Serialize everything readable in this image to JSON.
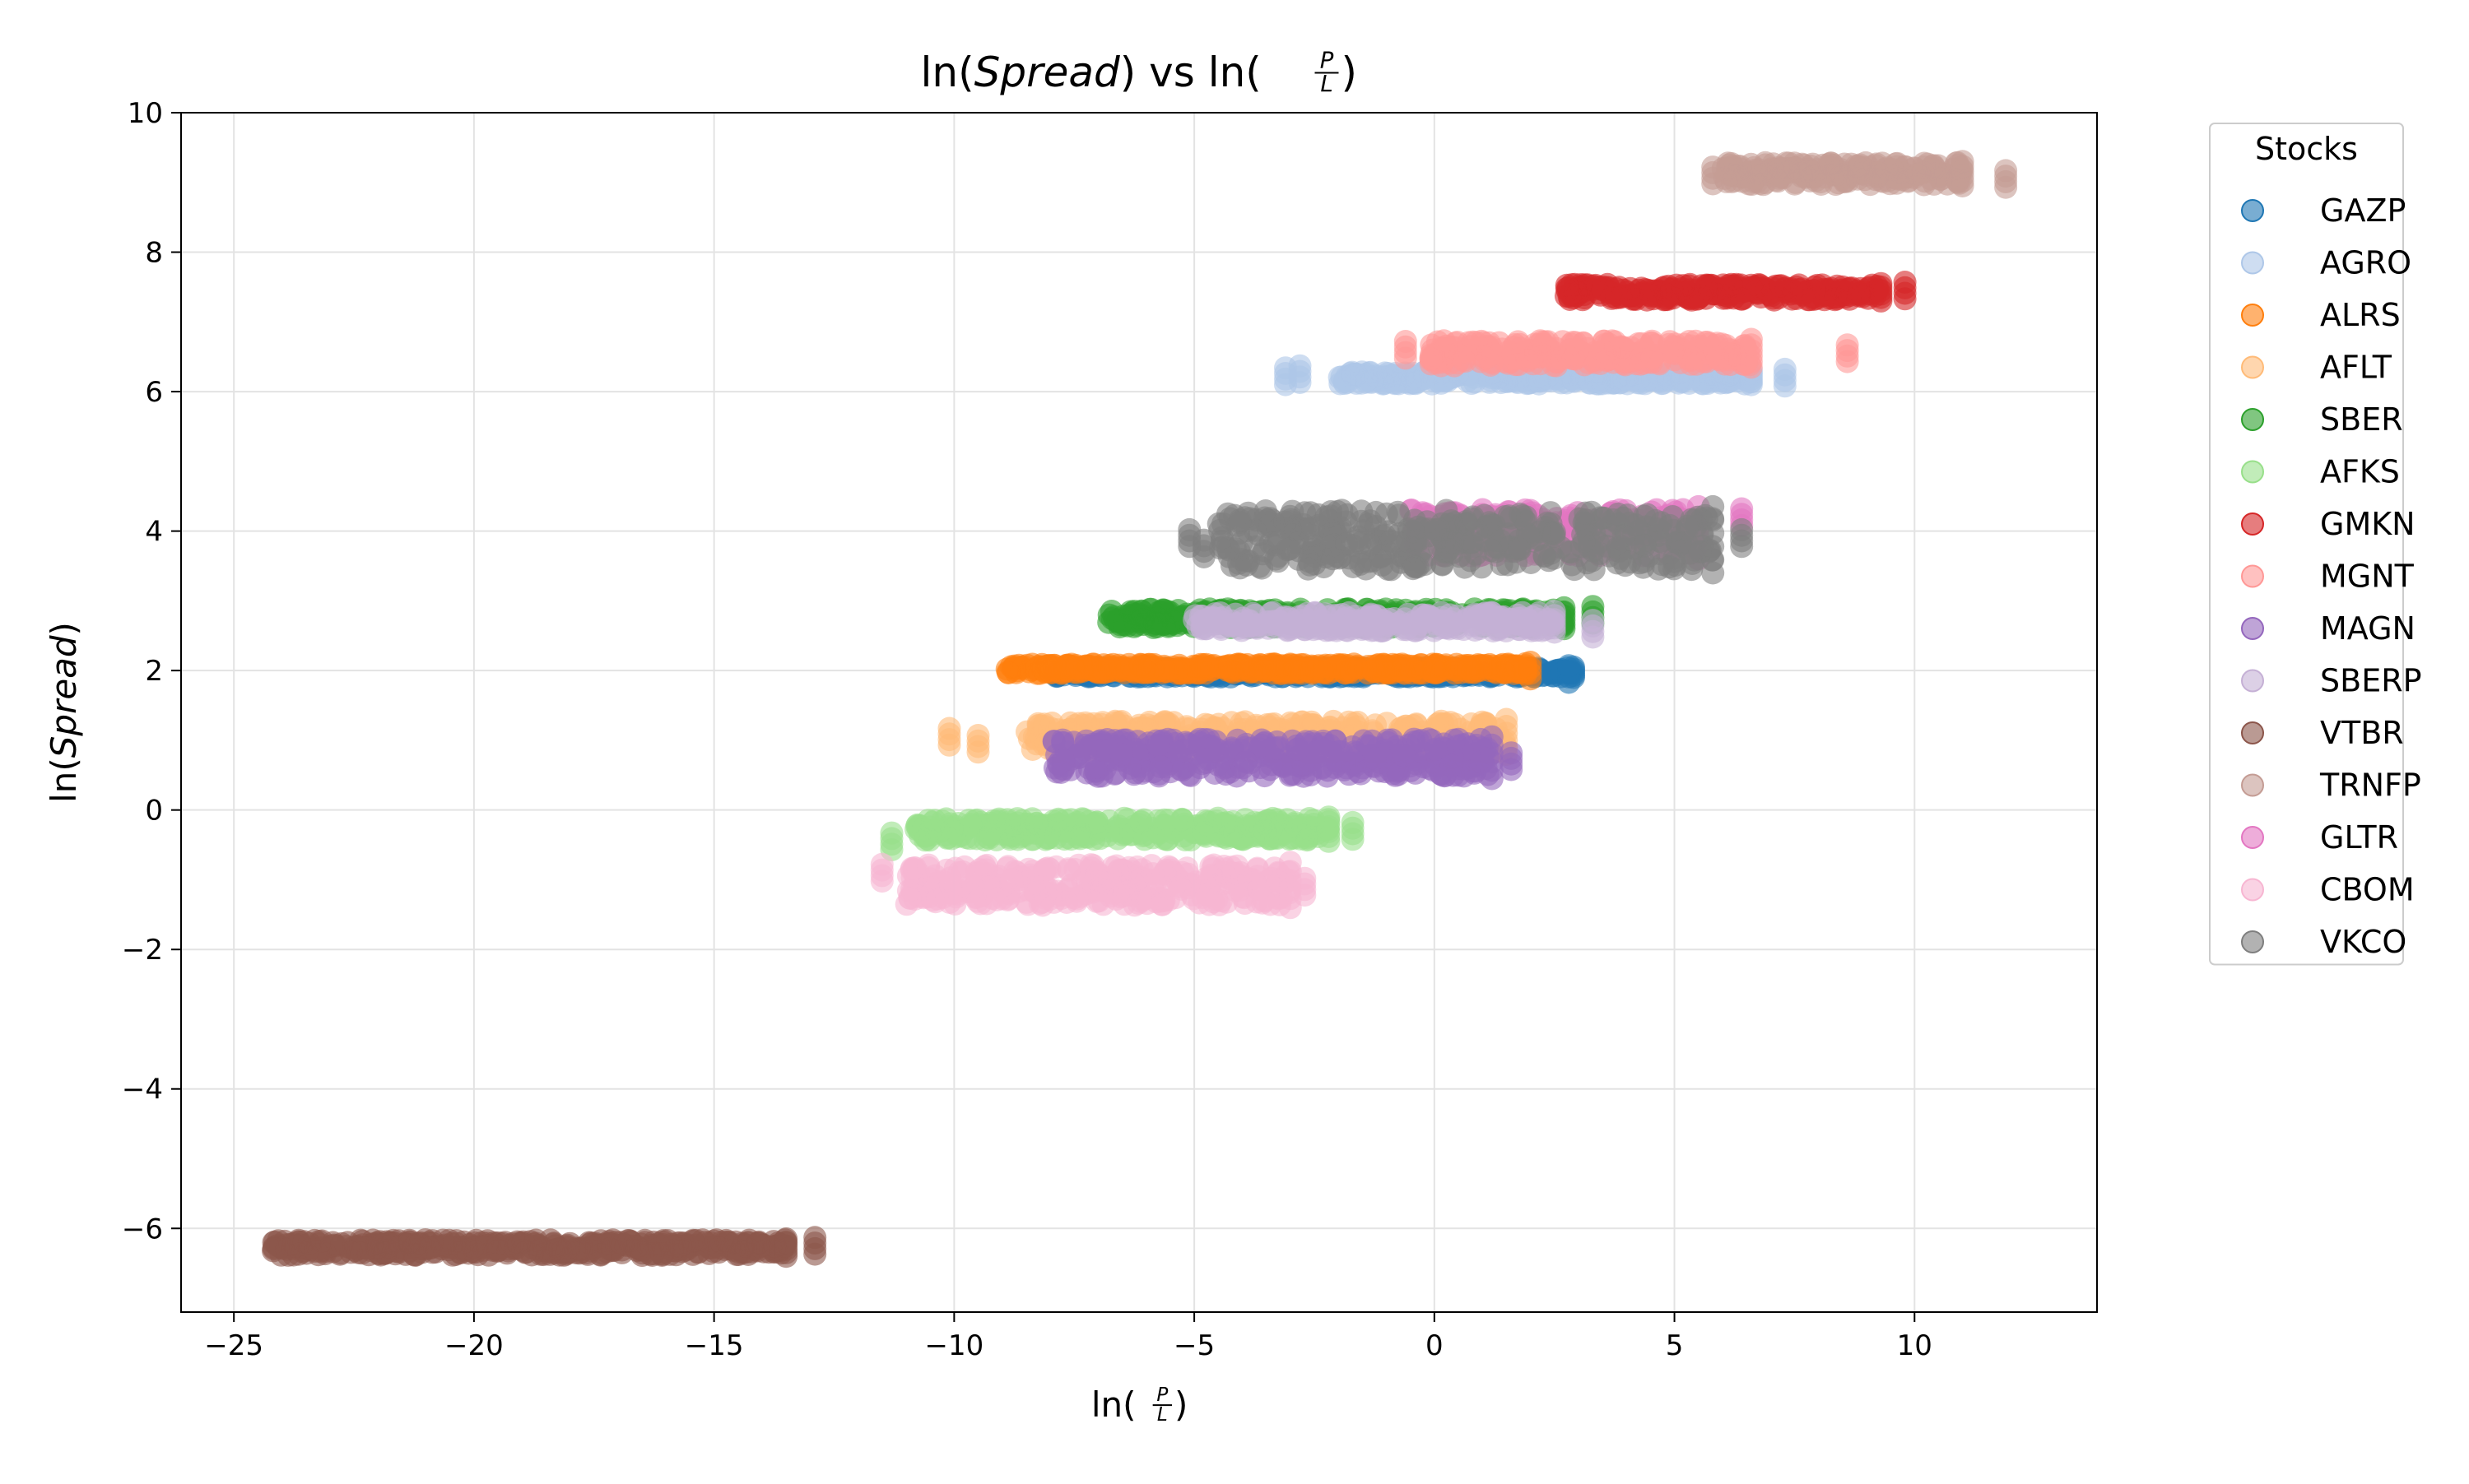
{
  "chart_data": {
    "type": "scatter",
    "title": "ln(Spread) vs ln(P/L)",
    "title_parts": {
      "prefix": "ln(",
      "italic": "Spread",
      "middle": ") vs ln(",
      "frac_num": "P",
      "frac_den": "L",
      "suffix": ")"
    },
    "xlabel": "ln(P/L)",
    "xlabel_parts": {
      "prefix": "ln(",
      "frac_num": "P",
      "frac_den": "L",
      "suffix": ")"
    },
    "ylabel": "ln(Spread)",
    "ylabel_parts": {
      "prefix": "ln(",
      "italic": "Spread",
      "suffix": ")"
    },
    "xlim": [
      -26.1,
      13.8
    ],
    "ylim": [
      -7.2,
      10.0
    ],
    "xticks": [
      -25,
      -20,
      -15,
      -10,
      -5,
      0,
      5,
      10
    ],
    "xtick_labels": [
      "−25",
      "−20",
      "−15",
      "−10",
      "−5",
      "0",
      "5",
      "10"
    ],
    "yticks": [
      -6,
      -4,
      -2,
      0,
      2,
      4,
      6,
      8,
      10
    ],
    "ytick_labels": [
      "−6",
      "−4",
      "−2",
      "0",
      "2",
      "4",
      "6",
      "8",
      "10"
    ],
    "grid": true,
    "legend": {
      "title": "Stocks",
      "position": "outside-right"
    },
    "series": [
      {
        "name": "GAZP",
        "color": "#1f77b4",
        "x_range": [
          -8.0,
          2.9
        ],
        "y_range": [
          1.9,
          2.05
        ],
        "outliers": [
          [
            2.8,
            1.95
          ]
        ]
      },
      {
        "name": "AGRO",
        "color": "#aec7e8",
        "x_range": [
          -2.0,
          6.6
        ],
        "y_range": [
          6.1,
          6.3
        ],
        "outliers": [
          [
            -3.1,
            6.22
          ],
          [
            -2.8,
            6.25
          ],
          [
            7.3,
            6.2
          ]
        ]
      },
      {
        "name": "ALRS",
        "color": "#ff7f0e",
        "x_range": [
          -8.9,
          1.9
        ],
        "y_range": [
          1.95,
          2.1
        ],
        "outliers": [
          [
            2.0,
            2.0
          ]
        ]
      },
      {
        "name": "AFLT",
        "color": "#ffbb78",
        "x_range": [
          -8.5,
          1.5
        ],
        "y_range": [
          0.8,
          1.3
        ],
        "outliers": [
          [
            -10.1,
            1.05
          ],
          [
            -9.5,
            0.95
          ]
        ]
      },
      {
        "name": "SBER",
        "color": "#2ca02c",
        "x_range": [
          -6.8,
          2.7
        ],
        "y_range": [
          2.6,
          2.9
        ],
        "outliers": [
          [
            3.3,
            2.8
          ]
        ]
      },
      {
        "name": "AFKS",
        "color": "#98df8a",
        "x_range": [
          -10.8,
          -2.2
        ],
        "y_range": [
          -0.45,
          -0.1
        ],
        "outliers": [
          [
            -11.3,
            -0.45
          ],
          [
            -1.7,
            -0.3
          ]
        ]
      },
      {
        "name": "GMKN",
        "color": "#d62728",
        "x_range": [
          2.7,
          9.3
        ],
        "y_range": [
          7.3,
          7.55
        ],
        "outliers": [
          [
            9.8,
            7.45
          ]
        ]
      },
      {
        "name": "MGNT",
        "color": "#ff9896",
        "x_range": [
          -0.1,
          6.6
        ],
        "y_range": [
          6.35,
          6.75
        ],
        "outliers": [
          [
            -0.6,
            6.6
          ],
          [
            8.6,
            6.55
          ]
        ]
      },
      {
        "name": "MAGN",
        "color": "#9467bd",
        "x_range": [
          -8.0,
          1.2
        ],
        "y_range": [
          0.45,
          1.05
        ],
        "outliers": [
          [
            1.6,
            0.7
          ]
        ]
      },
      {
        "name": "SBERP",
        "color": "#c5b0d5",
        "x_range": [
          -5.0,
          2.5
        ],
        "y_range": [
          2.55,
          2.85
        ],
        "outliers": [
          [
            3.3,
            2.6
          ]
        ]
      },
      {
        "name": "VTBR",
        "color": "#8c564b",
        "x_range": [
          -24.2,
          -13.5
        ],
        "y_range": [
          -6.4,
          -6.15
        ],
        "outliers": [
          [
            -12.9,
            -6.25
          ]
        ]
      },
      {
        "name": "TRNFP",
        "color": "#c49c94",
        "x_range": [
          6.0,
          11.0
        ],
        "y_range": [
          8.95,
          9.3
        ],
        "outliers": [
          [
            5.8,
            9.1
          ],
          [
            11.9,
            9.05
          ]
        ]
      },
      {
        "name": "GLTR",
        "color": "#e377c2",
        "x_range": [
          -0.5,
          5.5
        ],
        "y_range": [
          3.6,
          4.35
        ],
        "outliers": [
          [
            6.4,
            4.2
          ]
        ]
      },
      {
        "name": "CBOM",
        "color": "#f7b6d2",
        "x_range": [
          -11.0,
          -3.0
        ],
        "y_range": [
          -1.4,
          -0.75
        ],
        "outliers": [
          [
            -11.5,
            -0.9
          ],
          [
            -2.7,
            -1.1
          ]
        ]
      },
      {
        "name": "VKCO",
        "color": "#7f7f7f",
        "x_range": [
          -4.5,
          5.8
        ],
        "y_range": [
          3.4,
          4.35
        ],
        "outliers": [
          [
            -5.1,
            3.9
          ],
          [
            -4.8,
            3.75
          ],
          [
            6.4,
            3.9
          ]
        ]
      }
    ]
  }
}
